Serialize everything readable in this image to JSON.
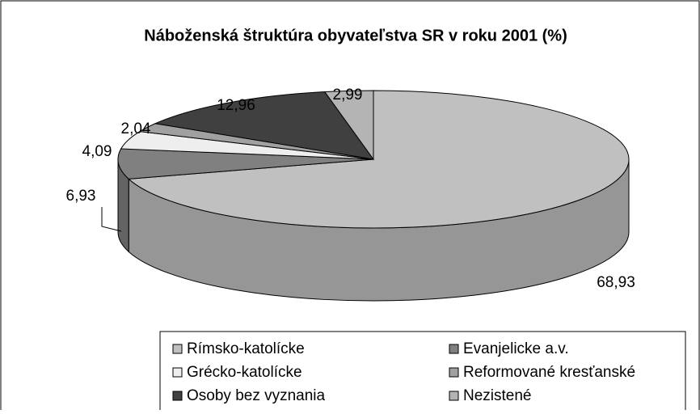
{
  "chart_data": {
    "type": "pie3d",
    "title": "Náboženská štruktúra obyvateľstva SR v roku 2001 (%)",
    "categories": [
      "Rímsko-katolícke",
      "Evanjelicke a.v.",
      "Grécko-katolícke",
      "Reformované kresťanské",
      "Osoby bez vyznania",
      "Nezistené"
    ],
    "values": [
      68.93,
      6.93,
      4.09,
      2.04,
      12.96,
      2.99
    ],
    "value_labels": [
      "68,93",
      "6,93",
      "4,09",
      "2,04",
      "12,96",
      "2,99"
    ],
    "colors": [
      "#c0c0c0",
      "#808080",
      "#eeeeee",
      "#a0a0a0",
      "#404040",
      "#b4b4b4"
    ],
    "legend": "bottom"
  }
}
